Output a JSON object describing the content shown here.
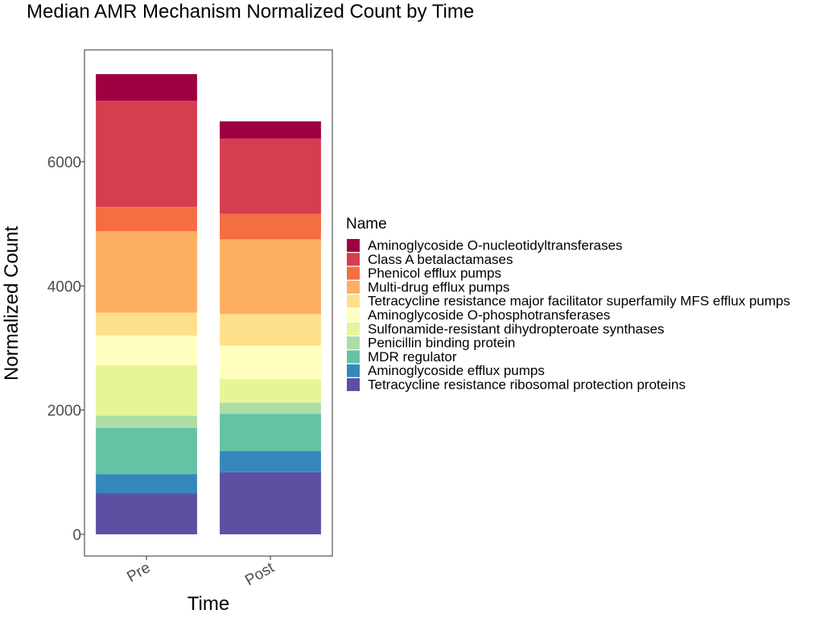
{
  "chart_data": {
    "type": "bar",
    "stacked": true,
    "title": "Median AMR Mechanism Normalized Count by Time",
    "xlabel": "Time",
    "ylabel": "Normalized Count",
    "categories": [
      "Pre",
      "Post"
    ],
    "ylim": [
      -350,
      7800
    ],
    "yticks": [
      0,
      2000,
      4000,
      6000
    ],
    "legend_title": "Name",
    "legend_position": "right",
    "grid": false,
    "series": [
      {
        "name": "Tetracycline resistance ribosomal protection proteins",
        "color": "#5E4FA2",
        "values": [
          660,
          1000
        ]
      },
      {
        "name": "Aminoglycoside efflux pumps",
        "color": "#3288BD",
        "values": [
          310,
          340
        ]
      },
      {
        "name": "MDR regulator",
        "color": "#66C2A5",
        "values": [
          740,
          600
        ]
      },
      {
        "name": "Penicillin binding protein",
        "color": "#ABDDA4",
        "values": [
          200,
          180
        ]
      },
      {
        "name": "Sulfonamide-resistant dihydropteroate synthases",
        "color": "#E6F598",
        "values": [
          810,
          380
        ]
      },
      {
        "name": "Aminoglycoside O-phosphotransferases",
        "color": "#FFFFBF",
        "values": [
          480,
          540
        ]
      },
      {
        "name": "Tetracycline resistance major facilitator superfamily MFS efflux pumps",
        "color": "#FEE08B",
        "values": [
          370,
          510
        ]
      },
      {
        "name": "Multi-drug efflux pumps",
        "color": "#FDAE61",
        "values": [
          1310,
          1200
        ]
      },
      {
        "name": "Phenicol efflux pumps",
        "color": "#F46D43",
        "values": [
          390,
          410
        ]
      },
      {
        "name": "Class A betalactamases",
        "color": "#D53E4F",
        "values": [
          1710,
          1210
        ]
      },
      {
        "name": "Aminoglycoside O-nucleotidyltransferases",
        "color": "#9E0142",
        "values": [
          430,
          280
        ]
      }
    ]
  }
}
